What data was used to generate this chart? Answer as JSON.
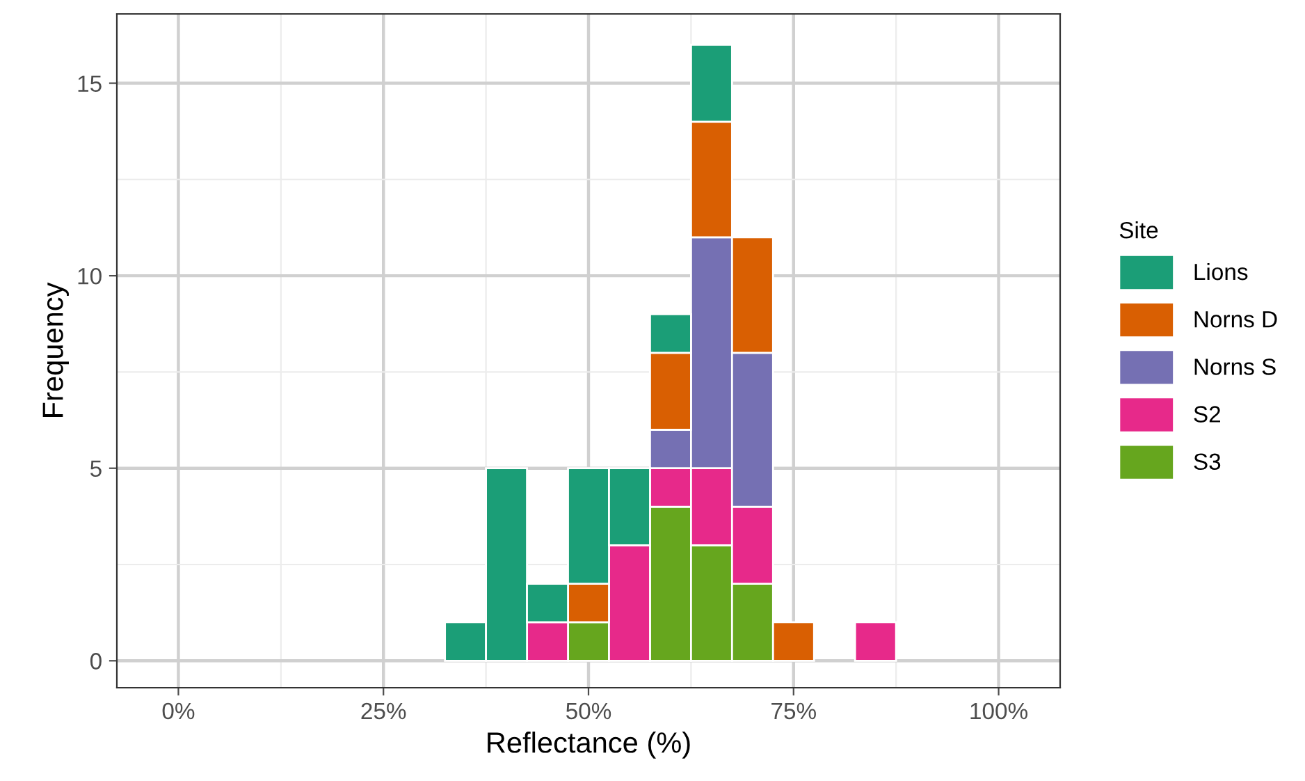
{
  "chart_data": {
    "type": "bar",
    "xlabel": "Reflectance (%)",
    "ylabel": "Frequency",
    "legend_title": "Site",
    "legend": "right",
    "grid": true,
    "stacked": true,
    "x": [
      35,
      40,
      45,
      50,
      55,
      60,
      65,
      70,
      75,
      80,
      85
    ],
    "xlim": [
      -7.5,
      107.5
    ],
    "ylim": [
      -0.7,
      16.8
    ],
    "xticks": [
      {
        "value": 0,
        "label": "0%"
      },
      {
        "value": 25,
        "label": "25%"
      },
      {
        "value": 50,
        "label": "50%"
      },
      {
        "value": 75,
        "label": "75%"
      },
      {
        "value": 100,
        "label": "100%"
      }
    ],
    "yticks": [
      0,
      5,
      10,
      15
    ],
    "series": [
      {
        "name": "S3",
        "color": "#66a61e",
        "values": [
          0,
          0,
          0,
          1,
          0,
          4,
          3,
          2,
          0,
          0,
          0
        ]
      },
      {
        "name": "S2",
        "color": "#e7298a",
        "values": [
          0,
          0,
          1,
          0,
          3,
          1,
          2,
          2,
          0,
          0,
          1
        ]
      },
      {
        "name": "Norns S",
        "color": "#7570b3",
        "values": [
          0,
          0,
          0,
          0,
          0,
          1,
          6,
          4,
          0,
          0,
          0
        ]
      },
      {
        "name": "Norns D",
        "color": "#d95f02",
        "values": [
          0,
          0,
          0,
          1,
          0,
          2,
          3,
          3,
          1,
          0,
          0
        ]
      },
      {
        "name": "Lions",
        "color": "#1b9e77",
        "values": [
          1,
          5,
          1,
          3,
          2,
          1,
          2,
          0,
          0,
          0,
          0
        ]
      }
    ]
  }
}
